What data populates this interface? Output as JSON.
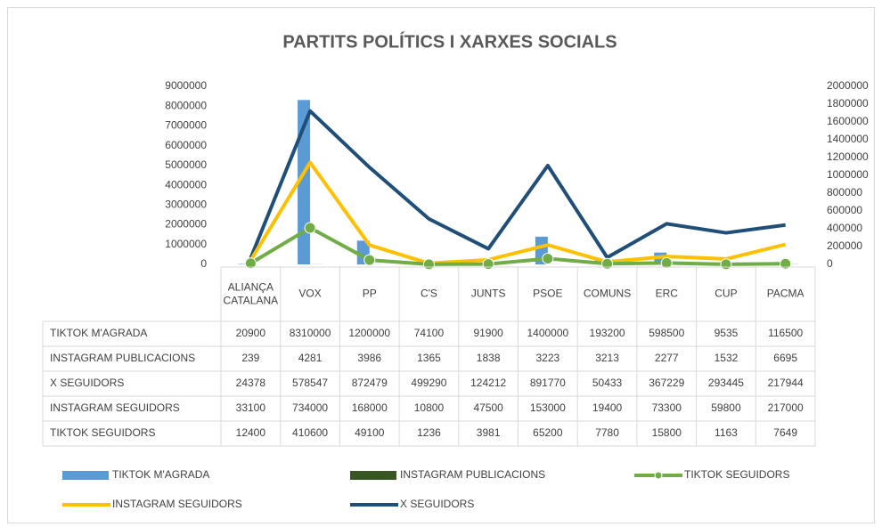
{
  "chart_data": {
    "type": "bar",
    "title": "PARTITS POLÍTICS I XARXES SOCIALS",
    "categories": [
      "ALIANÇA CATALANA",
      "VOX",
      "PP",
      "C'S",
      "JUNTS",
      "PSOE",
      "COMUNS",
      "ERC",
      "CUP",
      "PACMA"
    ],
    "series": [
      {
        "name": "TIKTOK M'AGRADA",
        "type": "bar",
        "color": "#5b9bd5",
        "values": [
          20900,
          8310000,
          1200000,
          74100,
          91900,
          1400000,
          193200,
          598500,
          9535,
          116500
        ]
      },
      {
        "name": "INSTAGRAM PUBLICACIONS",
        "type": "bar",
        "color": "#375623",
        "values": [
          239,
          4281,
          3986,
          1365,
          1838,
          3223,
          3213,
          2277,
          1532,
          6695
        ]
      },
      {
        "name": "X SEGUIDORS",
        "type": "line",
        "axis": "y2",
        "color": "#1f4e79",
        "values": [
          24378,
          578547,
          872479,
          499290,
          124212,
          891770,
          50433,
          367229,
          293445,
          217944
        ]
      },
      {
        "name": "INSTAGRAM SEGUIDORS",
        "type": "line",
        "axis": "y2",
        "color": "#ffc000",
        "values": [
          33100,
          734000,
          168000,
          10800,
          47500,
          153000,
          19400,
          73300,
          59800,
          217000
        ]
      },
      {
        "name": "TIKTOK SEGUIDORS",
        "type": "line",
        "axis": "y2",
        "color": "#70ad47",
        "marker": true,
        "values": [
          12400,
          410600,
          49100,
          1236,
          3981,
          65200,
          7780,
          15800,
          1163,
          7649
        ]
      }
    ],
    "stacked_lines": true,
    "ylim": [
      0,
      9000000
    ],
    "yticks": [
      0,
      1000000,
      2000000,
      3000000,
      4000000,
      5000000,
      6000000,
      7000000,
      8000000,
      9000000
    ],
    "y2lim": [
      0,
      2000000
    ],
    "y2ticks": [
      0,
      200000,
      400000,
      600000,
      800000,
      1000000,
      1200000,
      1400000,
      1600000,
      1800000,
      2000000
    ],
    "legend": "bottom"
  }
}
